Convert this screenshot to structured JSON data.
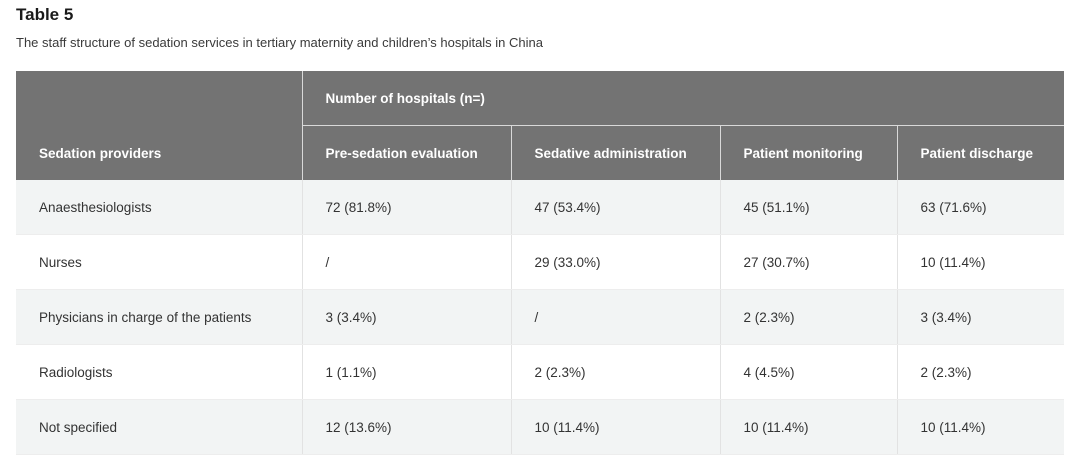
{
  "table_title": "Table 5",
  "table_caption": "The staff structure of sedation services in tertiary maternity and children’s hospitals in China",
  "header": {
    "row_header": "Sedation providers",
    "group": "Number of hospitals (n=)",
    "columns": [
      "Pre-sedation evaluation",
      "Sedative administration",
      "Patient monitoring",
      "Patient discharge"
    ]
  },
  "rows": [
    {
      "provider": "Anaesthesiologists",
      "cells": [
        "72 (81.8%)",
        "47 (53.4%)",
        "45 (51.1%)",
        "63 (71.6%)"
      ]
    },
    {
      "provider": "Nurses",
      "cells": [
        "/",
        "29 (33.0%)",
        "27 (30.7%)",
        "10 (11.4%)"
      ]
    },
    {
      "provider": "Physicians in charge of the patients",
      "cells": [
        "3 (3.4%)",
        "/",
        "2 (2.3%)",
        "3 (3.4%)"
      ]
    },
    {
      "provider": "Radiologists",
      "cells": [
        "1 (1.1%)",
        "2 (2.3%)",
        "4 (4.5%)",
        "2 (2.3%)"
      ]
    },
    {
      "provider": "Not specified",
      "cells": [
        "12 (13.6%)",
        "10 (11.4%)",
        "10 (11.4%)",
        "10 (11.4%)"
      ]
    }
  ]
}
